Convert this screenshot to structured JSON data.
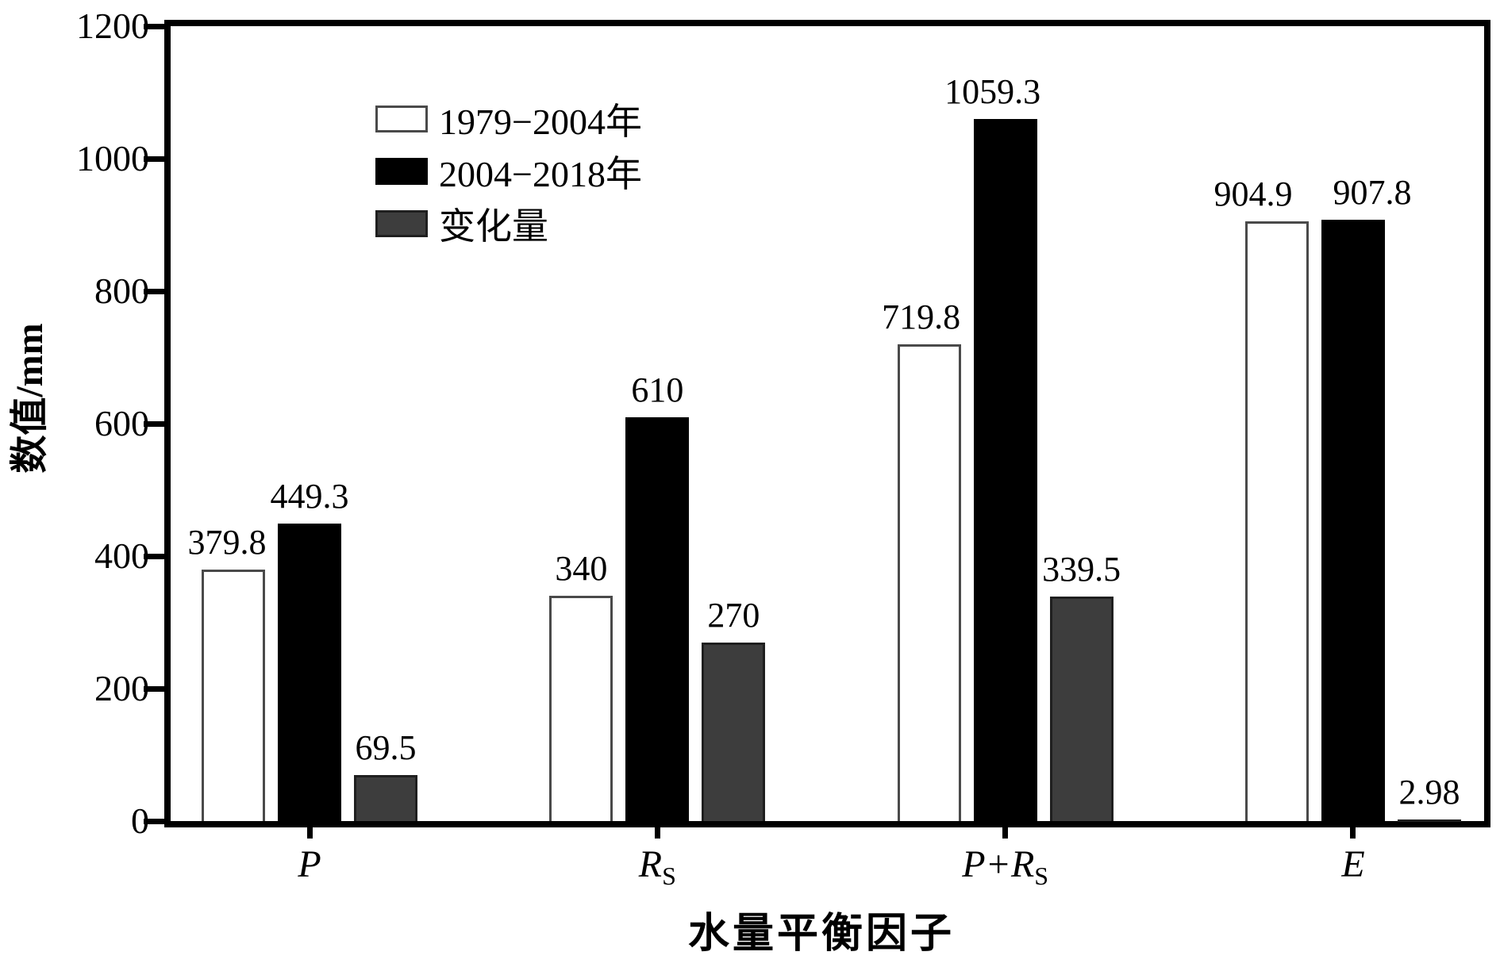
{
  "figure": {
    "background": "#ffffff",
    "axis_color": "#000000",
    "text_color": "#000000"
  },
  "chart_data": {
    "type": "bar",
    "title": "",
    "xlabel": "水量平衡因子",
    "ylabel": "数值/mm",
    "ylim": [
      0,
      1200
    ],
    "yticks": [
      "0",
      "200",
      "400",
      "600",
      "800",
      "1000",
      "1200"
    ],
    "grid": false,
    "legend_position": "top-left",
    "categories": [
      {
        "base": "P",
        "sub": ""
      },
      {
        "base": "R",
        "sub": "S"
      },
      {
        "base": "P+R",
        "sub": "S"
      },
      {
        "base": "E",
        "sub": ""
      }
    ],
    "series": [
      {
        "name": "1979−2004年",
        "values": [
          379.8,
          340,
          719.8,
          904.9
        ],
        "labels": [
          "379.8",
          "340",
          "719.8",
          "904.9"
        ],
        "label_dx": [
          -8,
          0,
          -10,
          -30
        ],
        "fill": "#ffffff",
        "border": "#4a4a4a"
      },
      {
        "name": "2004−2018年",
        "values": [
          449.3,
          610,
          1059.3,
          907.8
        ],
        "labels": [
          "449.3",
          "610",
          "1059.3",
          "907.8"
        ],
        "label_dx": [
          0,
          0,
          -16,
          24
        ],
        "fill": "#000000",
        "border": "#000000"
      },
      {
        "name": "变化量",
        "values": [
          69.5,
          270,
          339.5,
          2.98
        ],
        "labels": [
          "69.5",
          "270",
          "339.5",
          "2.98"
        ],
        "label_dx": [
          0,
          0,
          0,
          0
        ],
        "fill": "#3d3d3d",
        "border": "#1f1f1f"
      }
    ]
  }
}
